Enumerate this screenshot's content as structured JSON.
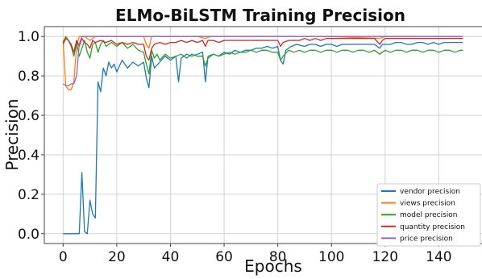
{
  "chart_data": {
    "type": "line",
    "title": "ELMo-BiLSTM Training Precision",
    "xlabel": "Epochs",
    "ylabel": "Precision",
    "xlim": [
      -7,
      157
    ],
    "ylim": [
      -0.05,
      1.05
    ],
    "xticks": [
      0,
      20,
      40,
      60,
      80,
      100,
      120,
      140
    ],
    "yticks": [
      0.0,
      0.2,
      0.4,
      0.6,
      0.8,
      1.0
    ],
    "ytick_labels": [
      "0.0",
      "0.2",
      "0.4",
      "0.6",
      "0.8",
      "1.0"
    ],
    "grid": true,
    "legend_position": "lower-right",
    "series": [
      {
        "name": "vendor precision",
        "color": "#1f77b4",
        "points": [
          [
            0,
            0
          ],
          [
            2,
            0
          ],
          [
            4,
            0
          ],
          [
            6,
            0
          ],
          [
            7,
            0.31
          ],
          [
            8,
            0.01
          ],
          [
            9,
            0
          ],
          [
            10,
            0.17
          ],
          [
            11,
            0.1
          ],
          [
            12,
            0.08
          ],
          [
            13,
            0.77
          ],
          [
            14,
            0.72
          ],
          [
            15,
            0.84
          ],
          [
            16,
            0.8
          ],
          [
            17,
            0.87
          ],
          [
            18,
            0.84
          ],
          [
            19,
            0.86
          ],
          [
            20,
            0.82
          ],
          [
            22,
            0.88
          ],
          [
            24,
            0.84
          ],
          [
            26,
            0.87
          ],
          [
            28,
            0.85
          ],
          [
            30,
            0.87
          ],
          [
            31,
            0.79
          ],
          [
            32,
            0.74
          ],
          [
            33,
            0.9
          ],
          [
            34,
            0.84
          ],
          [
            36,
            0.87
          ],
          [
            38,
            0.9
          ],
          [
            40,
            0.88
          ],
          [
            42,
            0.9
          ],
          [
            43,
            0.77
          ],
          [
            44,
            0.89
          ],
          [
            46,
            0.91
          ],
          [
            48,
            0.9
          ],
          [
            50,
            0.91
          ],
          [
            52,
            0.92
          ],
          [
            53,
            0.77
          ],
          [
            54,
            0.9
          ],
          [
            56,
            0.91
          ],
          [
            58,
            0.9
          ],
          [
            60,
            0.92
          ],
          [
            62,
            0.91
          ],
          [
            64,
            0.93
          ],
          [
            66,
            0.92
          ],
          [
            68,
            0.93
          ],
          [
            70,
            0.93
          ],
          [
            72,
            0.94
          ],
          [
            74,
            0.94
          ],
          [
            76,
            0.95
          ],
          [
            78,
            0.94
          ],
          [
            80,
            0.95
          ],
          [
            81,
            0.88
          ],
          [
            82,
            0.86
          ],
          [
            83,
            0.93
          ],
          [
            85,
            0.95
          ],
          [
            87,
            0.96
          ],
          [
            90,
            0.95
          ],
          [
            92,
            0.96
          ],
          [
            94,
            0.96
          ],
          [
            96,
            0.95
          ],
          [
            98,
            0.96
          ],
          [
            100,
            0.96
          ],
          [
            102,
            0.95
          ],
          [
            104,
            0.96
          ],
          [
            106,
            0.96
          ],
          [
            108,
            0.96
          ],
          [
            110,
            0.96
          ],
          [
            112,
            0.96
          ],
          [
            114,
            0.96
          ],
          [
            116,
            0.96
          ],
          [
            118,
            0.94
          ],
          [
            119,
            0.96
          ],
          [
            120,
            0.96
          ],
          [
            122,
            0.96
          ],
          [
            124,
            0.97
          ],
          [
            126,
            0.97
          ],
          [
            128,
            0.96
          ],
          [
            130,
            0.96
          ],
          [
            132,
            0.97
          ],
          [
            134,
            0.97
          ],
          [
            136,
            0.96
          ],
          [
            138,
            0.97
          ],
          [
            140,
            0.96
          ],
          [
            142,
            0.97
          ],
          [
            144,
            0.97
          ],
          [
            146,
            0.97
          ],
          [
            148,
            0.97
          ],
          [
            149,
            0.97
          ]
        ]
      },
      {
        "name": "views precision",
        "color": "#ff7f0e",
        "points": [
          [
            0,
            0.98
          ],
          [
            1,
            0.75
          ],
          [
            2,
            0.73
          ],
          [
            3,
            0.73
          ],
          [
            4,
            0.77
          ],
          [
            5,
            0.95
          ],
          [
            6,
            1.0
          ],
          [
            8,
            1.0
          ],
          [
            10,
            0.98
          ],
          [
            12,
            1.0
          ],
          [
            14,
            1.0
          ],
          [
            20,
            1.0
          ],
          [
            30,
            1.0
          ],
          [
            31,
            0.96
          ],
          [
            32,
            0.94
          ],
          [
            33,
            1.0
          ],
          [
            34,
            1.0
          ],
          [
            40,
            1.0
          ],
          [
            50,
            1.0
          ],
          [
            53,
            0.99
          ],
          [
            55,
            1.0
          ],
          [
            60,
            1.0
          ],
          [
            80,
            1.0
          ],
          [
            100,
            1.0
          ],
          [
            118,
            0.99
          ],
          [
            120,
            1.0
          ],
          [
            140,
            1.0
          ],
          [
            149,
            1.0
          ]
        ]
      },
      {
        "name": "model precision",
        "color": "#2ca02c",
        "points": [
          [
            0,
            0.97
          ],
          [
            1,
            1.0
          ],
          [
            2,
            0.98
          ],
          [
            3,
            0.95
          ],
          [
            4,
            0.9
          ],
          [
            5,
            0.97
          ],
          [
            6,
            0.9
          ],
          [
            7,
            0.94
          ],
          [
            8,
            0.98
          ],
          [
            9,
            0.92
          ],
          [
            10,
            0.89
          ],
          [
            11,
            0.96
          ],
          [
            12,
            0.97
          ],
          [
            13,
            0.92
          ],
          [
            14,
            0.96
          ],
          [
            15,
            0.98
          ],
          [
            16,
            0.95
          ],
          [
            18,
            0.97
          ],
          [
            20,
            0.95
          ],
          [
            22,
            0.97
          ],
          [
            24,
            0.94
          ],
          [
            26,
            0.96
          ],
          [
            28,
            0.93
          ],
          [
            30,
            0.92
          ],
          [
            31,
            0.86
          ],
          [
            32,
            0.81
          ],
          [
            33,
            0.93
          ],
          [
            34,
            0.89
          ],
          [
            35,
            0.91
          ],
          [
            36,
            0.88
          ],
          [
            38,
            0.91
          ],
          [
            40,
            0.89
          ],
          [
            42,
            0.9
          ],
          [
            44,
            0.91
          ],
          [
            46,
            0.89
          ],
          [
            48,
            0.91
          ],
          [
            50,
            0.9
          ],
          [
            52,
            0.9
          ],
          [
            53,
            0.85
          ],
          [
            54,
            0.89
          ],
          [
            56,
            0.91
          ],
          [
            58,
            0.9
          ],
          [
            60,
            0.91
          ],
          [
            62,
            0.92
          ],
          [
            64,
            0.91
          ],
          [
            66,
            0.92
          ],
          [
            68,
            0.92
          ],
          [
            70,
            0.93
          ],
          [
            72,
            0.92
          ],
          [
            74,
            0.93
          ],
          [
            76,
            0.93
          ],
          [
            78,
            0.92
          ],
          [
            80,
            0.92
          ],
          [
            81,
            0.88
          ],
          [
            82,
            0.9
          ],
          [
            84,
            0.93
          ],
          [
            86,
            0.92
          ],
          [
            88,
            0.93
          ],
          [
            90,
            0.92
          ],
          [
            92,
            0.93
          ],
          [
            94,
            0.93
          ],
          [
            96,
            0.92
          ],
          [
            98,
            0.93
          ],
          [
            100,
            0.93
          ],
          [
            102,
            0.92
          ],
          [
            104,
            0.93
          ],
          [
            106,
            0.93
          ],
          [
            108,
            0.92
          ],
          [
            110,
            0.93
          ],
          [
            112,
            0.93
          ],
          [
            114,
            0.92
          ],
          [
            116,
            0.93
          ],
          [
            118,
            0.91
          ],
          [
            120,
            0.93
          ],
          [
            122,
            0.92
          ],
          [
            124,
            0.93
          ],
          [
            126,
            0.93
          ],
          [
            128,
            0.92
          ],
          [
            130,
            0.93
          ],
          [
            132,
            0.93
          ],
          [
            134,
            0.92
          ],
          [
            136,
            0.93
          ],
          [
            138,
            0.93
          ],
          [
            140,
            0.92
          ],
          [
            142,
            0.93
          ],
          [
            144,
            0.93
          ],
          [
            146,
            0.92
          ],
          [
            148,
            0.93
          ],
          [
            149,
            0.93
          ]
        ]
      },
      {
        "name": "quantity precision",
        "color": "#d62728",
        "points": [
          [
            0,
            0.96
          ],
          [
            1,
            0.99
          ],
          [
            2,
            0.98
          ],
          [
            3,
            0.96
          ],
          [
            4,
            0.92
          ],
          [
            5,
            0.98
          ],
          [
            6,
            0.95
          ],
          [
            7,
            0.99
          ],
          [
            8,
            0.97
          ],
          [
            9,
            0.96
          ],
          [
            10,
            0.94
          ],
          [
            11,
            0.98
          ],
          [
            12,
            0.97
          ],
          [
            14,
            0.98
          ],
          [
            16,
            0.97
          ],
          [
            18,
            0.98
          ],
          [
            20,
            0.96
          ],
          [
            22,
            0.97
          ],
          [
            24,
            0.96
          ],
          [
            26,
            0.97
          ],
          [
            28,
            0.96
          ],
          [
            30,
            0.96
          ],
          [
            31,
            0.9
          ],
          [
            32,
            0.88
          ],
          [
            33,
            0.94
          ],
          [
            34,
            0.96
          ],
          [
            36,
            0.97
          ],
          [
            38,
            0.96
          ],
          [
            40,
            0.97
          ],
          [
            42,
            0.97
          ],
          [
            44,
            0.98
          ],
          [
            46,
            0.97
          ],
          [
            48,
            0.98
          ],
          [
            50,
            0.97
          ],
          [
            52,
            0.98
          ],
          [
            53,
            0.95
          ],
          [
            54,
            0.98
          ],
          [
            56,
            0.98
          ],
          [
            58,
            0.97
          ],
          [
            60,
            0.98
          ],
          [
            62,
            0.98
          ],
          [
            64,
            0.98
          ],
          [
            66,
            0.98
          ],
          [
            68,
            0.98
          ],
          [
            70,
            0.98
          ],
          [
            72,
            0.98
          ],
          [
            74,
            0.98
          ],
          [
            76,
            0.98
          ],
          [
            78,
            0.98
          ],
          [
            80,
            0.98
          ],
          [
            81,
            0.95
          ],
          [
            82,
            0.97
          ],
          [
            84,
            0.98
          ],
          [
            86,
            0.98
          ],
          [
            88,
            0.98
          ],
          [
            90,
            0.99
          ],
          [
            92,
            0.98
          ],
          [
            94,
            0.99
          ],
          [
            96,
            0.98
          ],
          [
            98,
            0.99
          ],
          [
            100,
            0.99
          ],
          [
            102,
            0.99
          ],
          [
            104,
            0.99
          ],
          [
            106,
            0.99
          ],
          [
            108,
            0.99
          ],
          [
            110,
            0.99
          ],
          [
            112,
            0.99
          ],
          [
            114,
            0.99
          ],
          [
            116,
            0.99
          ],
          [
            118,
            0.96
          ],
          [
            119,
            0.98
          ],
          [
            120,
            0.99
          ],
          [
            122,
            0.99
          ],
          [
            124,
            0.99
          ],
          [
            126,
            0.99
          ],
          [
            128,
            0.99
          ],
          [
            130,
            0.99
          ],
          [
            132,
            0.99
          ],
          [
            134,
            0.99
          ],
          [
            136,
            0.99
          ],
          [
            138,
            0.99
          ],
          [
            140,
            0.99
          ],
          [
            142,
            0.99
          ],
          [
            144,
            0.99
          ],
          [
            146,
            0.99
          ],
          [
            148,
            0.99
          ],
          [
            149,
            0.99
          ]
        ]
      },
      {
        "name": "price precision",
        "color": "#9467bd",
        "points": [
          [
            0,
            0.76
          ],
          [
            1,
            0.75
          ],
          [
            2,
            0.75
          ],
          [
            3,
            0.76
          ],
          [
            4,
            0.76
          ],
          [
            5,
            0.8
          ],
          [
            6,
            0.96
          ],
          [
            7,
            1.0
          ],
          [
            10,
            1.0
          ],
          [
            20,
            1.0
          ],
          [
            30,
            1.0
          ],
          [
            40,
            1.0
          ],
          [
            60,
            1.0
          ],
          [
            80,
            1.0
          ],
          [
            100,
            1.0
          ],
          [
            120,
            1.0
          ],
          [
            140,
            1.0
          ],
          [
            149,
            1.0
          ]
        ]
      }
    ]
  }
}
